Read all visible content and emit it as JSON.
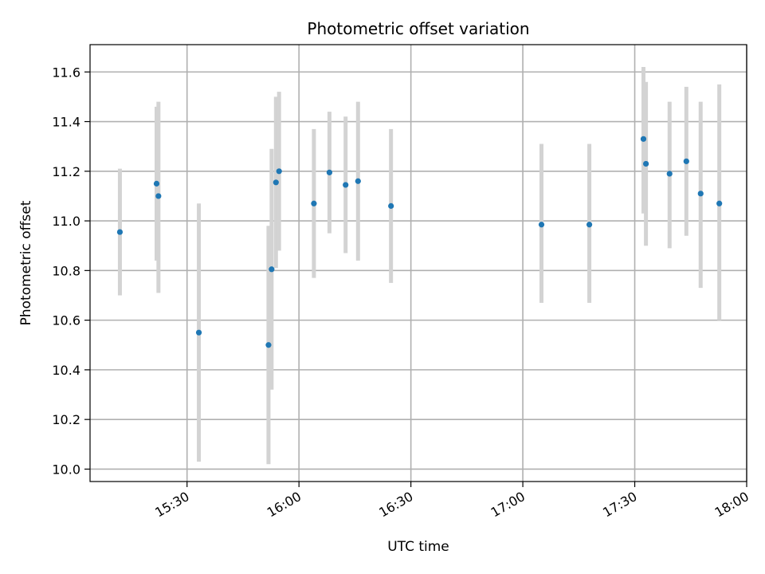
{
  "chart_data": {
    "type": "scatter",
    "title": "Photometric offset variation",
    "xlabel": "UTC time",
    "ylabel": "Photometric offset",
    "x_axis": "time",
    "xlim": [
      "15:04",
      "18:00"
    ],
    "ylim": [
      9.95,
      11.71
    ],
    "xticks": [
      {
        "t": "15:30",
        "label": "15:30"
      },
      {
        "t": "16:00",
        "label": "16:00"
      },
      {
        "t": "16:30",
        "label": "16:30"
      },
      {
        "t": "17:00",
        "label": "17:00"
      },
      {
        "t": "17:30",
        "label": "17:30"
      },
      {
        "t": "18:00",
        "label": "18:00"
      }
    ],
    "yticks": [
      10.0,
      10.2,
      10.4,
      10.6,
      10.8,
      11.0,
      11.2,
      11.4,
      11.6
    ],
    "ytick_labels": [
      "10.0",
      "10.2",
      "10.4",
      "10.6",
      "10.8",
      "11.0",
      "11.2",
      "11.4",
      "11.6"
    ],
    "grid": true,
    "colors": {
      "point": "#1f77b4",
      "errorbar": "#d3d3d3",
      "grid": "#b0b0b0",
      "axes": "#000000"
    },
    "points": [
      {
        "t": "15:12:00",
        "y": 10.955,
        "ylo": 10.7,
        "yhi": 11.21
      },
      {
        "t": "15:21:50",
        "y": 11.15,
        "ylo": 10.84,
        "yhi": 11.46
      },
      {
        "t": "15:22:20",
        "y": 11.1,
        "ylo": 10.71,
        "yhi": 11.48
      },
      {
        "t": "15:33:10",
        "y": 10.55,
        "ylo": 10.03,
        "yhi": 11.07
      },
      {
        "t": "15:51:50",
        "y": 10.5,
        "ylo": 10.02,
        "yhi": 10.98
      },
      {
        "t": "15:52:40",
        "y": 10.805,
        "ylo": 10.32,
        "yhi": 11.29
      },
      {
        "t": "15:53:50",
        "y": 11.155,
        "ylo": 10.81,
        "yhi": 11.5
      },
      {
        "t": "15:54:40",
        "y": 11.2,
        "ylo": 10.88,
        "yhi": 11.52
      },
      {
        "t": "16:04:00",
        "y": 11.07,
        "ylo": 10.77,
        "yhi": 11.37
      },
      {
        "t": "16:08:10",
        "y": 11.195,
        "ylo": 10.95,
        "yhi": 11.44
      },
      {
        "t": "16:12:30",
        "y": 11.145,
        "ylo": 10.87,
        "yhi": 11.42
      },
      {
        "t": "16:15:50",
        "y": 11.16,
        "ylo": 10.84,
        "yhi": 11.48
      },
      {
        "t": "16:24:40",
        "y": 11.06,
        "ylo": 10.75,
        "yhi": 11.37
      },
      {
        "t": "17:05:00",
        "y": 10.985,
        "ylo": 10.67,
        "yhi": 11.31
      },
      {
        "t": "17:17:50",
        "y": 10.985,
        "ylo": 10.67,
        "yhi": 11.31
      },
      {
        "t": "17:32:20",
        "y": 11.33,
        "ylo": 11.03,
        "yhi": 11.62
      },
      {
        "t": "17:33:00",
        "y": 11.23,
        "ylo": 10.9,
        "yhi": 11.56
      },
      {
        "t": "17:39:20",
        "y": 11.19,
        "ylo": 10.89,
        "yhi": 11.48
      },
      {
        "t": "17:43:50",
        "y": 11.24,
        "ylo": 10.94,
        "yhi": 11.54
      },
      {
        "t": "17:47:40",
        "y": 11.11,
        "ylo": 10.73,
        "yhi": 11.48
      },
      {
        "t": "17:52:40",
        "y": 11.07,
        "ylo": 10.6,
        "yhi": 11.55
      }
    ]
  }
}
